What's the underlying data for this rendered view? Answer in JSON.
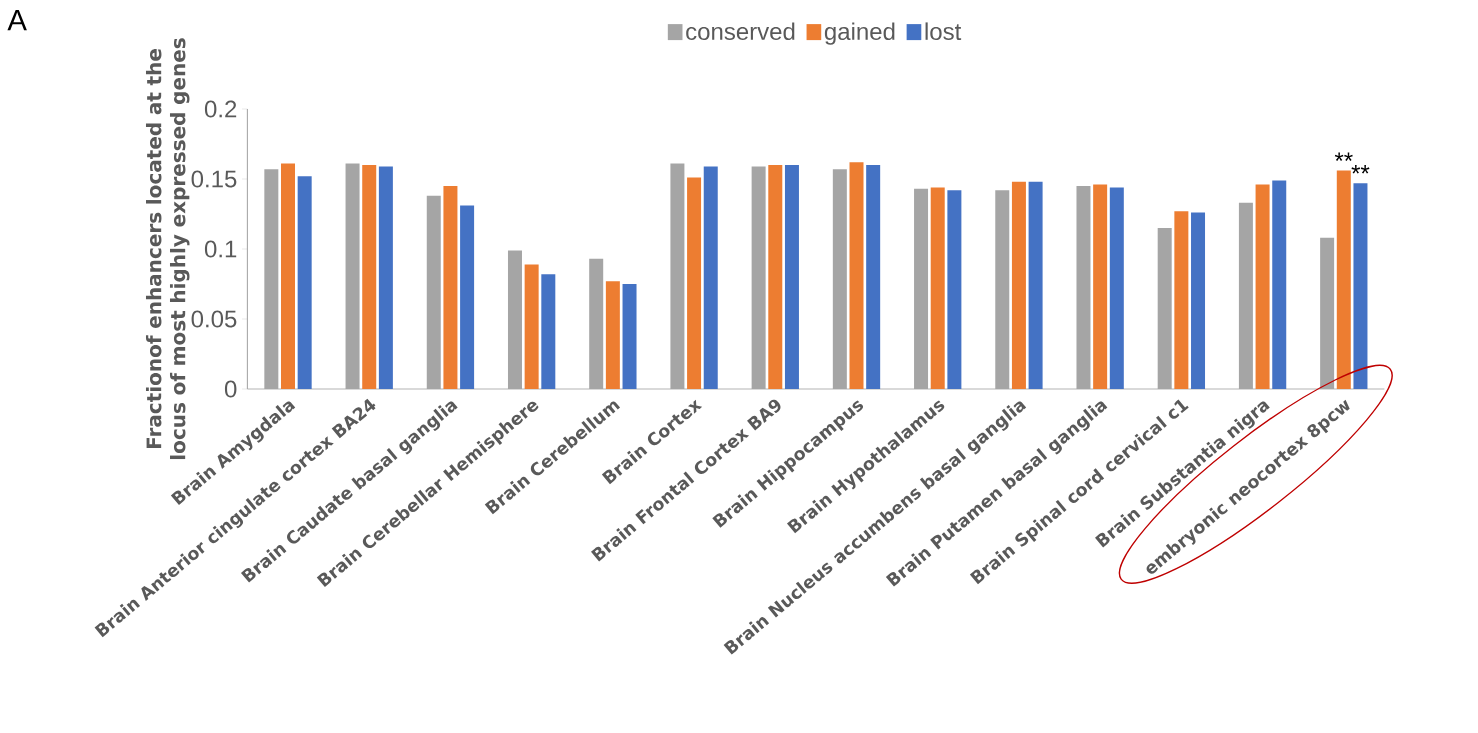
{
  "chart_data": {
    "type": "bar",
    "ylabel": "Fractionof enhancers located at the locus of most highly expressed genes",
    "categories": [
      "Brain Amygdala",
      "Brain Anterior cingulate cortex BA24",
      "Brain Caudate basal ganglia",
      "Brain Cerebellar Hemisphere",
      "Brain Cerebellum",
      "Brain Cortex",
      "Brain Frontal Cortex BA9",
      "Brain Hippocampus",
      "Brain Hypothalamus",
      "Brain Nucleus accumbens basal ganglia",
      "Brain Putamen basal ganglia",
      "Brain Spinal cord cervical c1",
      "Brain Substantia nigra",
      "embryonic neocortex 8pcw"
    ],
    "series": [
      {
        "name": "conserved",
        "color": "#a5a5a5",
        "values": [
          0.157,
          0.161,
          0.138,
          0.099,
          0.093,
          0.161,
          0.159,
          0.157,
          0.143,
          0.142,
          0.145,
          0.115,
          0.133,
          0.108
        ]
      },
      {
        "name": "gained",
        "color": "#ed7d31",
        "values": [
          0.161,
          0.16,
          0.145,
          0.089,
          0.077,
          0.151,
          0.16,
          0.162,
          0.144,
          0.148,
          0.146,
          0.127,
          0.146,
          0.156
        ]
      },
      {
        "name": "lost",
        "color": "#4472c4",
        "values": [
          0.152,
          0.159,
          0.131,
          0.082,
          0.075,
          0.159,
          0.16,
          0.16,
          0.142,
          0.148,
          0.144,
          0.126,
          0.149,
          0.147
        ]
      }
    ],
    "ylim": [
      0,
      0.2
    ],
    "yticks": [
      0,
      0.05,
      0.1,
      0.15,
      0.2
    ],
    "grid": false,
    "legend": "top",
    "annotations": [
      "A",
      {
        "text": "**",
        "x": "embryonic neocortex 8pcw",
        "y": 0.156
      },
      "**"
    ]
  }
}
